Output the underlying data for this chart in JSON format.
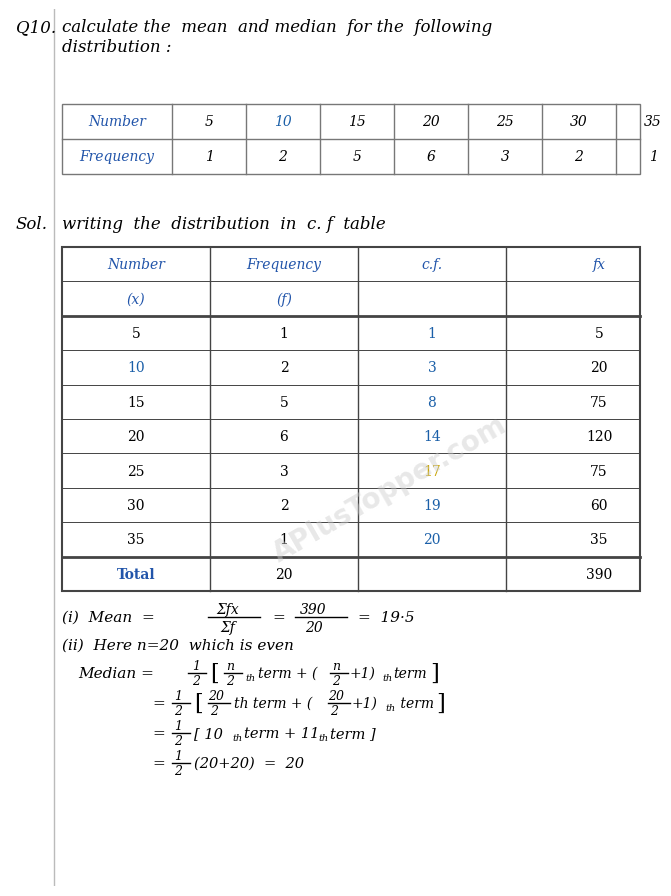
{
  "bg_color": "#ffffff",
  "page_width": 6.43,
  "page_height": 8.77,
  "text_color": "#000000",
  "blue_color": "#1a5fa8",
  "orange_color": "#c8a400",
  "header_blue": "#2255aa",
  "line_color": "#555555",
  "q_label": "Q10.",
  "q_text1": "calculate the  mean  and median  for the  following",
  "q_text2": "distribution :",
  "sol_label": "Sol.",
  "sol_text": "writing  the  distribution  in  c. f  table",
  "t1_headers": [
    "Number",
    "5",
    "10",
    "15",
    "20",
    "25",
    "30",
    "35"
  ],
  "t1_row": [
    "Frequency",
    "1",
    "2",
    "5",
    "6",
    "3",
    "2",
    "1"
  ],
  "t2_col_headers_top": [
    "Number",
    "Frequency",
    "c.f.",
    "fx"
  ],
  "t2_col_headers_bot": [
    "(x)",
    "(f)",
    "",
    ""
  ],
  "t2_rows": [
    [
      "5",
      "1",
      "1",
      "5"
    ],
    [
      "10",
      "2",
      "3",
      "20"
    ],
    [
      "15",
      "5",
      "8",
      "75"
    ],
    [
      "20",
      "6",
      "14",
      "120"
    ],
    [
      "25",
      "3",
      "17",
      "75"
    ],
    [
      "30",
      "2",
      "19",
      "60"
    ],
    [
      "35",
      "1",
      "20",
      "35"
    ],
    [
      "Total",
      "20",
      "",
      "390"
    ]
  ],
  "x_blue_vals": [
    "10"
  ],
  "cf_blue_vals": [
    "1",
    "3",
    "8",
    "14",
    "19",
    "20"
  ],
  "cf_orange_vals": [
    "17"
  ],
  "watermark": "APlusTopper.com"
}
